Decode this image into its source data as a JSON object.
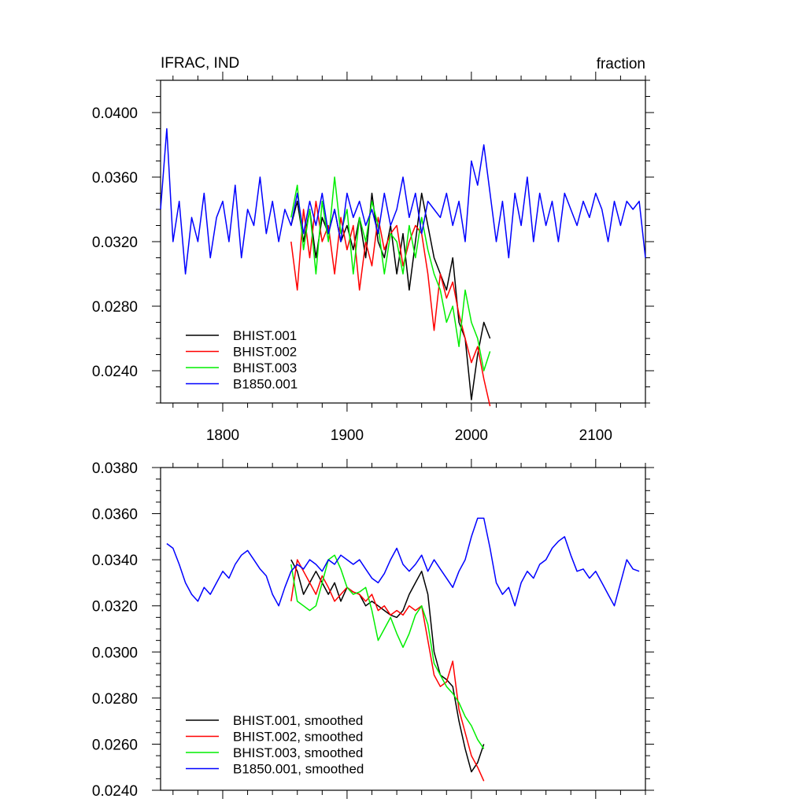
{
  "chart_data": [
    {
      "type": "line",
      "title": "IFRAC, IND",
      "units": "fraction",
      "xlim": [
        1750,
        2140
      ],
      "ylim": [
        0.022,
        0.042
      ],
      "xticks": [
        1800,
        1900,
        2000,
        2100
      ],
      "xtick_labels": [
        "1800",
        "1900",
        "2000",
        "2100"
      ],
      "yticks": [
        0.024,
        0.028,
        0.032,
        0.036,
        0.04
      ],
      "ytick_labels": [
        "0.0240",
        "0.0280",
        "0.0320",
        "0.0360",
        "0.0400"
      ],
      "legend_position": "bottom-left",
      "series": [
        {
          "name": "BHIST.001",
          "color": "#000000",
          "x": [
            1855,
            1860,
            1865,
            1870,
            1875,
            1880,
            1885,
            1890,
            1895,
            1900,
            1905,
            1910,
            1915,
            1920,
            1925,
            1930,
            1935,
            1940,
            1945,
            1950,
            1955,
            1960,
            1965,
            1970,
            1975,
            1980,
            1985,
            1990,
            1995,
            2000,
            2005,
            2010,
            2015
          ],
          "y": [
            0.033,
            0.0345,
            0.032,
            0.034,
            0.031,
            0.0335,
            0.0325,
            0.034,
            0.032,
            0.033,
            0.0315,
            0.0335,
            0.031,
            0.035,
            0.032,
            0.031,
            0.033,
            0.03,
            0.0325,
            0.029,
            0.032,
            0.035,
            0.033,
            0.031,
            0.03,
            0.029,
            0.031,
            0.027,
            0.026,
            0.0222,
            0.025,
            0.027,
            0.026
          ]
        },
        {
          "name": "BHIST.002",
          "color": "#ff0000",
          "x": [
            1855,
            1860,
            1865,
            1870,
            1875,
            1880,
            1885,
            1890,
            1895,
            1900,
            1905,
            1910,
            1915,
            1920,
            1925,
            1930,
            1935,
            1940,
            1945,
            1950,
            1955,
            1960,
            1965,
            1970,
            1975,
            1980,
            1985,
            1990,
            1995,
            2000,
            2005,
            2010,
            2015
          ],
          "y": [
            0.032,
            0.029,
            0.034,
            0.031,
            0.0345,
            0.032,
            0.033,
            0.03,
            0.0335,
            0.0315,
            0.033,
            0.029,
            0.032,
            0.0305,
            0.0335,
            0.0315,
            0.0325,
            0.033,
            0.0305,
            0.032,
            0.033,
            0.0325,
            0.03,
            0.0265,
            0.03,
            0.0285,
            0.0295,
            0.0275,
            0.026,
            0.0245,
            0.0255,
            0.0235,
            0.0218
          ]
        },
        {
          "name": "BHIST.003",
          "color": "#00ee00",
          "x": [
            1855,
            1860,
            1865,
            1870,
            1875,
            1880,
            1885,
            1890,
            1895,
            1900,
            1905,
            1910,
            1915,
            1920,
            1925,
            1930,
            1935,
            1940,
            1945,
            1950,
            1955,
            1960,
            1965,
            1970,
            1975,
            1980,
            1985,
            1990,
            1995,
            2000,
            2005,
            2010,
            2015
          ],
          "y": [
            0.0335,
            0.0355,
            0.0315,
            0.034,
            0.03,
            0.0345,
            0.032,
            0.036,
            0.0325,
            0.034,
            0.03,
            0.0335,
            0.032,
            0.0345,
            0.033,
            0.03,
            0.0325,
            0.032,
            0.03,
            0.033,
            0.031,
            0.0335,
            0.0315,
            0.03,
            0.029,
            0.027,
            0.028,
            0.0255,
            0.029,
            0.027,
            0.026,
            0.024,
            0.0252
          ]
        },
        {
          "name": "B1850.001",
          "color": "#0000ff",
          "x": [
            1750,
            1755,
            1760,
            1765,
            1770,
            1775,
            1780,
            1785,
            1790,
            1795,
            1800,
            1805,
            1810,
            1815,
            1820,
            1825,
            1830,
            1835,
            1840,
            1845,
            1850,
            1855,
            1860,
            1865,
            1870,
            1875,
            1880,
            1885,
            1890,
            1895,
            1900,
            1905,
            1910,
            1915,
            1920,
            1925,
            1930,
            1935,
            1940,
            1945,
            1950,
            1955,
            1960,
            1965,
            1970,
            1975,
            1980,
            1985,
            1990,
            1995,
            2000,
            2005,
            2010,
            2015,
            2020,
            2025,
            2030,
            2035,
            2040,
            2045,
            2050,
            2055,
            2060,
            2065,
            2070,
            2075,
            2080,
            2085,
            2090,
            2095,
            2100,
            2105,
            2110,
            2115,
            2120,
            2125,
            2130,
            2135,
            2140
          ],
          "y": [
            0.034,
            0.039,
            0.032,
            0.0345,
            0.03,
            0.0335,
            0.032,
            0.035,
            0.031,
            0.0335,
            0.0345,
            0.032,
            0.0355,
            0.031,
            0.034,
            0.033,
            0.036,
            0.0325,
            0.0345,
            0.032,
            0.034,
            0.033,
            0.035,
            0.0325,
            0.0345,
            0.033,
            0.035,
            0.0325,
            0.034,
            0.032,
            0.035,
            0.0335,
            0.0345,
            0.033,
            0.034,
            0.0325,
            0.035,
            0.033,
            0.034,
            0.036,
            0.0335,
            0.035,
            0.0325,
            0.0345,
            0.034,
            0.0335,
            0.035,
            0.033,
            0.0345,
            0.032,
            0.037,
            0.0355,
            0.038,
            0.035,
            0.032,
            0.0345,
            0.031,
            0.035,
            0.033,
            0.036,
            0.032,
            0.035,
            0.033,
            0.0345,
            0.032,
            0.035,
            0.034,
            0.033,
            0.0345,
            0.0335,
            0.035,
            0.034,
            0.032,
            0.0345,
            0.033,
            0.0345,
            0.034,
            0.0345,
            0.031
          ]
        }
      ]
    },
    {
      "type": "line",
      "xlim": [
        1750,
        2140
      ],
      "ylim": [
        0.024,
        0.038
      ],
      "xticks": [
        1800,
        1900,
        2000,
        2100
      ],
      "yticks": [
        0.024,
        0.026,
        0.028,
        0.03,
        0.032,
        0.034,
        0.036,
        0.038
      ],
      "ytick_labels": [
        "0.0240",
        "0.0260",
        "0.0280",
        "0.0300",
        "0.0320",
        "0.0340",
        "0.0360",
        "0.0380"
      ],
      "legend_position": "bottom-left",
      "series": [
        {
          "name": "BHIST.001, smoothed",
          "color": "#000000",
          "x": [
            1855,
            1860,
            1865,
            1870,
            1875,
            1880,
            1885,
            1890,
            1895,
            1900,
            1905,
            1910,
            1915,
            1920,
            1925,
            1930,
            1935,
            1940,
            1945,
            1950,
            1955,
            1960,
            1965,
            1970,
            1975,
            1980,
            1985,
            1990,
            1995,
            2000,
            2005,
            2010
          ],
          "y": [
            0.034,
            0.0335,
            0.0325,
            0.033,
            0.0335,
            0.033,
            0.0325,
            0.033,
            0.0322,
            0.0328,
            0.0326,
            0.0325,
            0.032,
            0.0322,
            0.032,
            0.0318,
            0.0316,
            0.0315,
            0.0318,
            0.0325,
            0.033,
            0.0335,
            0.0325,
            0.03,
            0.029,
            0.0288,
            0.0285,
            0.027,
            0.0258,
            0.0248,
            0.0252,
            0.026
          ]
        },
        {
          "name": "BHIST.002, smoothed",
          "color": "#ff0000",
          "x": [
            1855,
            1860,
            1865,
            1870,
            1875,
            1880,
            1885,
            1890,
            1895,
            1900,
            1905,
            1910,
            1915,
            1920,
            1925,
            1930,
            1935,
            1940,
            1945,
            1950,
            1955,
            1960,
            1965,
            1970,
            1975,
            1980,
            1985,
            1990,
            1995,
            2000,
            2005,
            2010
          ],
          "y": [
            0.0322,
            0.034,
            0.0335,
            0.033,
            0.0325,
            0.0333,
            0.0328,
            0.0322,
            0.0325,
            0.0328,
            0.0326,
            0.0325,
            0.0322,
            0.0325,
            0.0318,
            0.032,
            0.0316,
            0.0318,
            0.0316,
            0.032,
            0.0318,
            0.032,
            0.0305,
            0.029,
            0.0285,
            0.0287,
            0.0296,
            0.0275,
            0.0265,
            0.0255,
            0.025,
            0.0244
          ]
        },
        {
          "name": "BHIST.003, smoothed",
          "color": "#00ee00",
          "x": [
            1855,
            1860,
            1865,
            1870,
            1875,
            1880,
            1885,
            1890,
            1895,
            1900,
            1905,
            1910,
            1915,
            1920,
            1925,
            1930,
            1935,
            1940,
            1945,
            1950,
            1955,
            1960,
            1965,
            1970,
            1975,
            1980,
            1985,
            1990,
            1995,
            2000,
            2005,
            2010
          ],
          "y": [
            0.0338,
            0.0322,
            0.032,
            0.0318,
            0.032,
            0.033,
            0.034,
            0.0342,
            0.0336,
            0.0328,
            0.0325,
            0.0326,
            0.0328,
            0.0318,
            0.0305,
            0.031,
            0.0315,
            0.0308,
            0.0302,
            0.0308,
            0.0316,
            0.032,
            0.0312,
            0.0295,
            0.029,
            0.0285,
            0.0282,
            0.0278,
            0.0272,
            0.0268,
            0.0262,
            0.0258
          ]
        },
        {
          "name": "B1850.001, smoothed",
          "color": "#0000ff",
          "x": [
            1755,
            1760,
            1765,
            1770,
            1775,
            1780,
            1785,
            1790,
            1795,
            1800,
            1805,
            1810,
            1815,
            1820,
            1825,
            1830,
            1835,
            1840,
            1845,
            1850,
            1855,
            1860,
            1865,
            1870,
            1875,
            1880,
            1885,
            1890,
            1895,
            1900,
            1905,
            1910,
            1915,
            1920,
            1925,
            1930,
            1935,
            1940,
            1945,
            1950,
            1955,
            1960,
            1965,
            1970,
            1975,
            1980,
            1985,
            1990,
            1995,
            2000,
            2005,
            2010,
            2015,
            2020,
            2025,
            2030,
            2035,
            2040,
            2045,
            2050,
            2055,
            2060,
            2065,
            2070,
            2075,
            2080,
            2085,
            2090,
            2095,
            2100,
            2105,
            2110,
            2115,
            2120,
            2125,
            2130,
            2135
          ],
          "y": [
            0.0347,
            0.0345,
            0.0338,
            0.033,
            0.0325,
            0.0322,
            0.0328,
            0.0325,
            0.033,
            0.0335,
            0.0332,
            0.0338,
            0.0342,
            0.0344,
            0.034,
            0.0336,
            0.0333,
            0.0325,
            0.032,
            0.0328,
            0.0335,
            0.0338,
            0.0336,
            0.034,
            0.0338,
            0.0335,
            0.034,
            0.0338,
            0.0342,
            0.034,
            0.0338,
            0.034,
            0.0336,
            0.0332,
            0.033,
            0.0334,
            0.034,
            0.0345,
            0.0338,
            0.0335,
            0.0338,
            0.0342,
            0.0335,
            0.034,
            0.0336,
            0.0332,
            0.0328,
            0.0335,
            0.034,
            0.035,
            0.0358,
            0.0358,
            0.0345,
            0.033,
            0.0325,
            0.0328,
            0.032,
            0.033,
            0.0335,
            0.0332,
            0.0338,
            0.034,
            0.0345,
            0.0348,
            0.035,
            0.0342,
            0.0335,
            0.0336,
            0.0332,
            0.0335,
            0.033,
            0.0325,
            0.032,
            0.033,
            0.034,
            0.0336,
            0.0335
          ]
        }
      ]
    }
  ]
}
